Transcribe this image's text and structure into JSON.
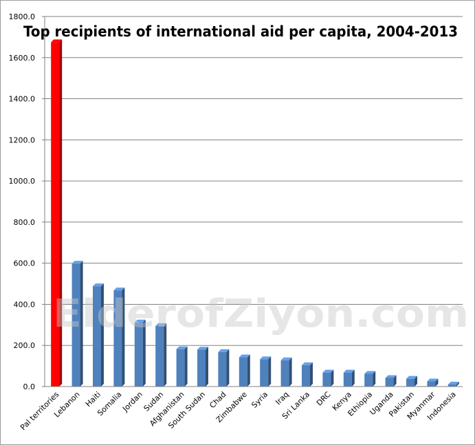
{
  "chart_data": {
    "type": "bar",
    "title": "Top recipients of international aid per capita, 2004-2013",
    "xlabel": "",
    "ylabel": "",
    "ylim": [
      0,
      1800
    ],
    "yticks": [
      "0.0",
      "200.0",
      "400.0",
      "600.0",
      "800.0",
      "1000.0",
      "1200.0",
      "1400.0",
      "1600.0",
      "1800.0"
    ],
    "grid": true,
    "legend": "none",
    "categories": [
      "Pal territories",
      "Lebanon",
      "Haiti",
      "Somalia",
      "Jordan",
      "Sudan",
      "Afghanistan",
      "South Sudan",
      "Chad",
      "Zimbabwe",
      "Syria",
      "Iraq",
      "Sri Lanka",
      "DRC",
      "Kenya",
      "Ethiopia",
      "Uganda",
      "Pakistan",
      "Myanmar",
      "Indonesia"
    ],
    "values": [
      1675,
      598,
      488,
      468,
      312,
      295,
      182,
      180,
      168,
      142,
      133,
      128,
      104,
      68,
      68,
      62,
      42,
      38,
      25,
      10
    ],
    "colors": {
      "highlight": "#ff0000",
      "bar": "#4f81bd",
      "grid": "#808080"
    },
    "highlight_index": 0
  },
  "watermark": "ElderofZiyon.com"
}
